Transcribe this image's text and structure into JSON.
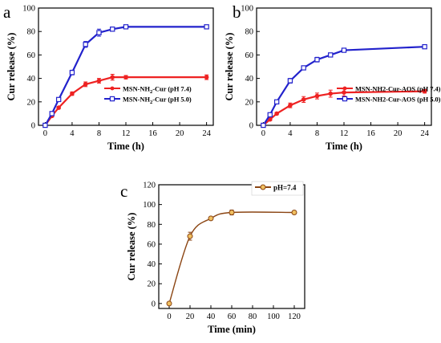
{
  "chart_data": [
    {
      "id": "a",
      "panel_label": "a",
      "type": "line",
      "xlabel": "Time (h)",
      "ylabel": "Cur release (%)",
      "xlim": [
        -1,
        25
      ],
      "ylim": [
        0,
        100
      ],
      "x_ticks": [
        0,
        4,
        8,
        12,
        16,
        20,
        24
      ],
      "y_ticks": [
        0,
        20,
        40,
        60,
        80,
        100
      ],
      "legend_position": "bottom-right",
      "series": [
        {
          "name": "MSN-NH2-Cur (pH 7.4)",
          "legend_main": "MSN-NH",
          "legend_sub": "2",
          "legend_rest": "-Cur (pH 7.4)",
          "color": "#ee2222",
          "marker": "circle",
          "x": [
            0,
            1,
            2,
            4,
            6,
            8,
            10,
            12,
            24
          ],
          "y": [
            0,
            8,
            15,
            27,
            35,
            38,
            41,
            41,
            41
          ],
          "err": [
            0,
            1,
            1,
            1.5,
            2,
            2,
            2.5,
            1.5,
            2
          ]
        },
        {
          "name": "MSN-NH2-Cur (pH 5.0)",
          "legend_main": "MSN-NH",
          "legend_sub": "2",
          "legend_rest": "-Cur (pH 5.0)",
          "color": "#2222cc",
          "marker": "square",
          "x": [
            0,
            1,
            2,
            4,
            6,
            8,
            10,
            12,
            24
          ],
          "y": [
            0,
            10,
            22,
            45,
            69,
            79,
            82,
            84,
            84
          ],
          "err": [
            0,
            1,
            1.5,
            2,
            2.5,
            3,
            1.5,
            1.5,
            1
          ]
        }
      ]
    },
    {
      "id": "b",
      "panel_label": "b",
      "type": "line",
      "xlabel": "Time (h)",
      "ylabel": "Cur release (%)",
      "xlim": [
        -1,
        25
      ],
      "ylim": [
        0,
        100
      ],
      "x_ticks": [
        0,
        4,
        8,
        12,
        16,
        20,
        24
      ],
      "y_ticks": [
        0,
        20,
        40,
        60,
        80,
        100
      ],
      "legend_position": "bottom-right",
      "series": [
        {
          "name": "MSN-NH2-Cur-AOS (pH 7.4)",
          "legend_main": "MSN-NH2-Cur-AOS (pH 7.4)",
          "legend_sub": "",
          "legend_rest": "",
          "color": "#ee2222",
          "marker": "circle",
          "x": [
            0,
            1,
            2,
            4,
            6,
            8,
            10,
            12,
            24
          ],
          "y": [
            0,
            5,
            10,
            17,
            22,
            25,
            27,
            28,
            29
          ],
          "err": [
            0,
            1,
            1,
            2,
            2.5,
            2.5,
            3,
            3,
            1.5
          ]
        },
        {
          "name": "MSN-NH2-Cur-AOS (pH 5.0)",
          "legend_main": "MSN-NH2-Cur-AOS (pH 5.0)",
          "legend_sub": "",
          "legend_rest": "",
          "color": "#2222cc",
          "marker": "square",
          "x": [
            0,
            1,
            2,
            4,
            6,
            8,
            10,
            12,
            24
          ],
          "y": [
            0,
            9,
            20,
            38,
            49,
            56,
            60,
            64,
            67
          ],
          "err": [
            0,
            1,
            1.5,
            2,
            1.5,
            2,
            1.5,
            1,
            1
          ]
        }
      ]
    },
    {
      "id": "c",
      "panel_label": "c",
      "type": "line",
      "xlabel": "Time (min)",
      "ylabel": "Cur release (%)",
      "xlim": [
        -10,
        130
      ],
      "ylim": [
        -5,
        120
      ],
      "x_ticks": [
        0,
        20,
        40,
        60,
        80,
        100,
        120
      ],
      "y_ticks": [
        0,
        20,
        40,
        60,
        80,
        100,
        120
      ],
      "legend_position": "top-right",
      "smooth": true,
      "series": [
        {
          "name": "pH=7.4",
          "legend_main": "pH=7.4",
          "legend_sub": "",
          "legend_rest": "",
          "color": "#8b4513",
          "marker": "circle",
          "x": [
            0,
            20,
            40,
            60,
            120
          ],
          "y": [
            0,
            68,
            86,
            92,
            92
          ],
          "err": [
            0,
            4,
            1.5,
            2.5,
            1
          ]
        }
      ]
    }
  ]
}
